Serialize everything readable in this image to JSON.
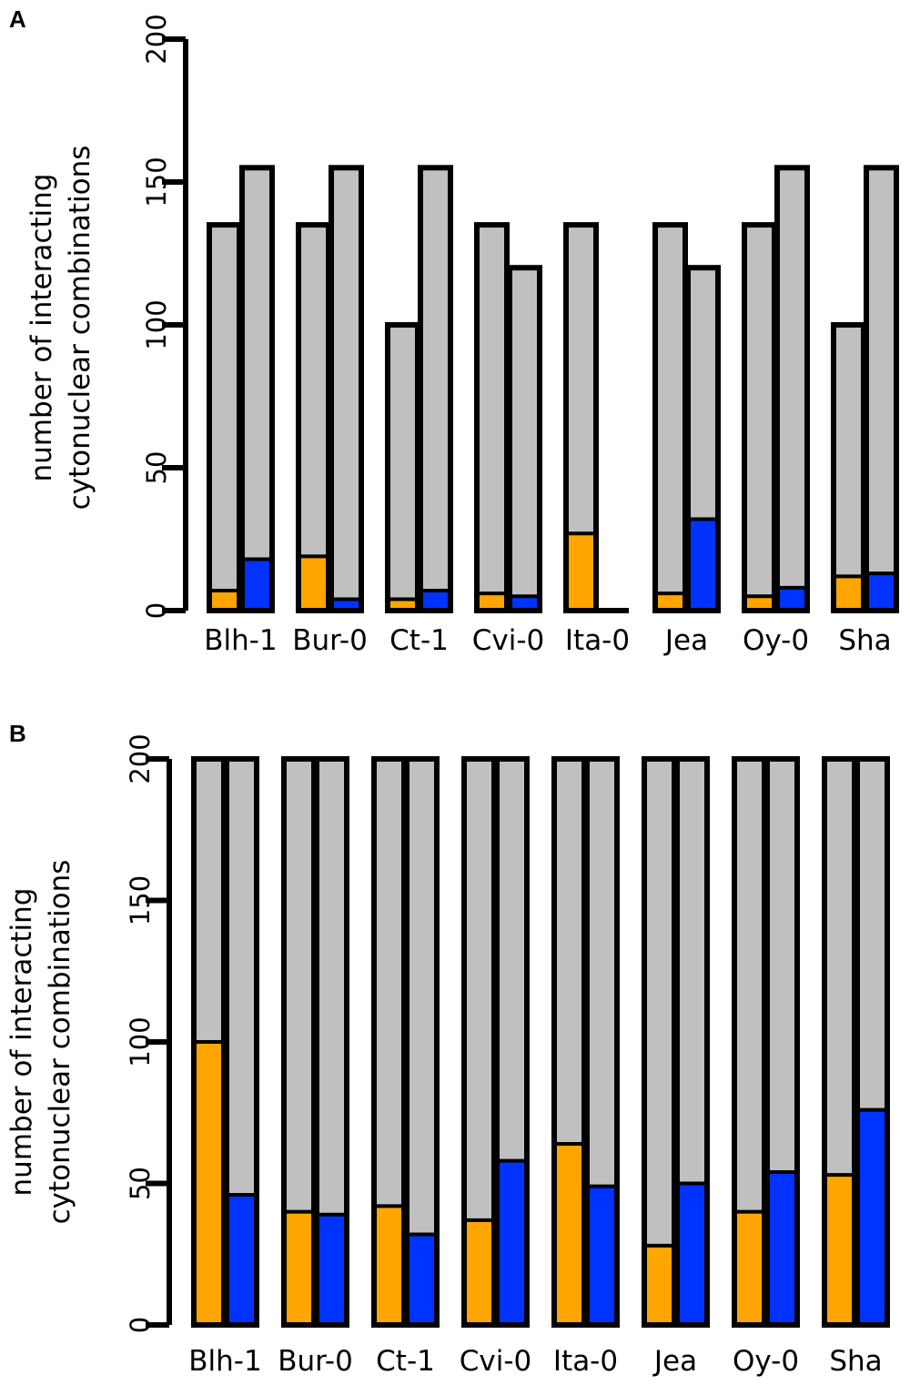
{
  "colors": {
    "background": "#c0c0c0",
    "series_a": "#ffa500",
    "series_b": "#0033ff",
    "outline": "#000000"
  },
  "chart_data": [
    {
      "panel": "A",
      "type": "bar",
      "title": "",
      "xlabel": "",
      "ylabel": [
        "number of interacting",
        "cytonuclear combinations"
      ],
      "ylim": [
        0,
        200
      ],
      "yticks": [
        0,
        50,
        100,
        150,
        200
      ],
      "categories": [
        "Blh-1",
        "Bur-0",
        "Ct-1",
        "Cvi-0",
        "Ita-0",
        "Jea",
        "Oy-0",
        "Sha"
      ],
      "totals_left": [
        135,
        135,
        100,
        135,
        135,
        135,
        135,
        100
      ],
      "totals_right": [
        155,
        155,
        155,
        120,
        0,
        120,
        155,
        155
      ],
      "series": [
        {
          "name": "left",
          "values": [
            7,
            19,
            4,
            6,
            27,
            6,
            5,
            12
          ]
        },
        {
          "name": "right",
          "values": [
            18,
            4,
            7,
            5,
            0,
            32,
            8,
            13
          ]
        }
      ]
    },
    {
      "panel": "B",
      "type": "bar",
      "title": "",
      "xlabel": "",
      "ylabel": [
        "number of interacting",
        "cytonuclear combinations"
      ],
      "ylim": [
        0,
        200
      ],
      "yticks": [
        0,
        50,
        100,
        150,
        200
      ],
      "categories": [
        "Blh-1",
        "Bur-0",
        "Ct-1",
        "Cvi-0",
        "Ita-0",
        "Jea",
        "Oy-0",
        "Sha"
      ],
      "totals_left": [
        200,
        200,
        200,
        200,
        200,
        200,
        200,
        200
      ],
      "totals_right": [
        200,
        200,
        200,
        200,
        200,
        200,
        200,
        200
      ],
      "series": [
        {
          "name": "left",
          "values": [
            100,
            40,
            42,
            37,
            64,
            28,
            40,
            53
          ]
        },
        {
          "name": "right",
          "values": [
            46,
            39,
            32,
            58,
            49,
            50,
            54,
            76
          ]
        }
      ]
    }
  ]
}
